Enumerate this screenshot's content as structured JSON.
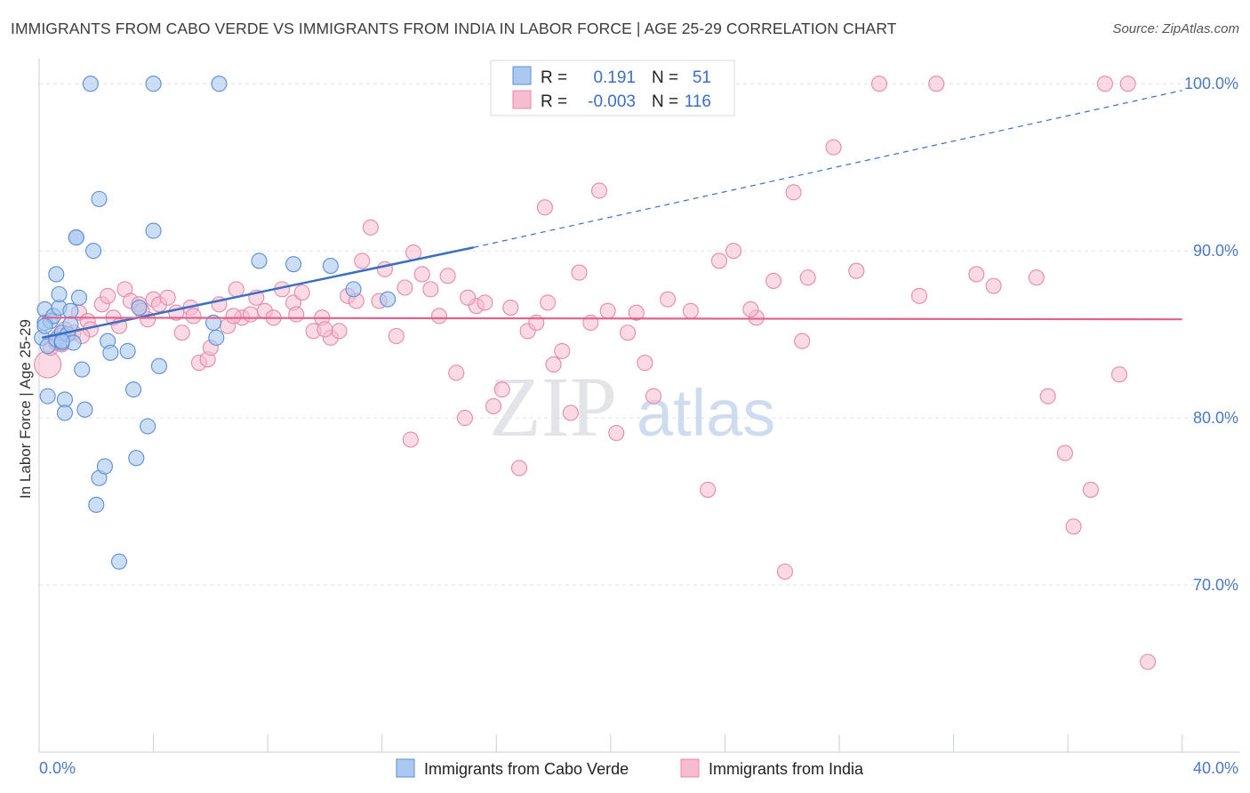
{
  "title": "IMMIGRANTS FROM CABO VERDE VS IMMIGRANTS FROM INDIA IN LABOR FORCE | AGE 25-29 CORRELATION CHART",
  "source": "Source: ZipAtlas.com",
  "colors": {
    "blue_fill": "#aac8f0",
    "blue_stroke": "#5b8fd6",
    "blue_line": "#3a6fc4",
    "pink_fill": "#f7bcd0",
    "pink_stroke": "#e58aa9",
    "pink_line": "#e0628c",
    "grid": "#dde3ea",
    "tick": "#4a79c4"
  },
  "watermark": {
    "zip": "ZIP",
    "atlas": "atlas"
  },
  "legend": {
    "rows": [
      {
        "r_label": "R =",
        "r_value": "0.191",
        "n_label": "N =",
        "n_value": "51"
      },
      {
        "r_label": "R =",
        "r_value": "-0.003",
        "n_label": "N =",
        "n_value": "116"
      }
    ]
  },
  "chart_data": {
    "type": "scatter",
    "title": "IMMIGRANTS FROM CABO VERDE VS IMMIGRANTS FROM INDIA IN LABOR FORCE | AGE 25-29 CORRELATION CHART",
    "xlabel": "",
    "ylabel": "In Labor Force | Age 25-29",
    "xlim": [
      0,
      42
    ],
    "ylim": [
      60,
      101.5
    ],
    "x_tick_labels": [
      {
        "value": 0,
        "label": "0.0%"
      },
      {
        "value": 40,
        "label": "40.0%"
      }
    ],
    "y_tick_labels": [
      {
        "value": 100,
        "label": "100.0%"
      },
      {
        "value": 90,
        "label": "90.0%"
      },
      {
        "value": 80,
        "label": "80.0%"
      },
      {
        "value": 70,
        "label": "70.0%"
      }
    ],
    "x_minor_ticks": [
      0,
      4,
      8,
      12,
      16,
      20,
      24,
      28,
      32,
      36,
      40
    ],
    "grid_y": [
      100,
      90,
      80,
      70
    ],
    "series": [
      {
        "name": "Immigrants from Cabo Verde",
        "trend": {
          "x": [
            0.1,
            15.2
          ],
          "y": [
            84.8,
            90.2
          ],
          "dashed_to": [
            40.0,
            99.6
          ]
        },
        "points": [
          [
            0.1,
            84.8
          ],
          [
            0.2,
            86.5
          ],
          [
            0.2,
            85.7
          ],
          [
            0.3,
            84.3
          ],
          [
            0.3,
            81.3
          ],
          [
            0.4,
            85.8
          ],
          [
            0.5,
            86.1
          ],
          [
            0.6,
            88.6
          ],
          [
            0.6,
            84.7
          ],
          [
            0.7,
            86.6
          ],
          [
            0.7,
            87.4
          ],
          [
            0.8,
            85.1
          ],
          [
            0.8,
            84.5
          ],
          [
            0.9,
            81.1
          ],
          [
            0.9,
            80.3
          ],
          [
            1.0,
            85.0
          ],
          [
            1.1,
            86.4
          ],
          [
            1.1,
            85.6
          ],
          [
            1.2,
            84.5
          ],
          [
            1.3,
            90.8
          ],
          [
            1.3,
            90.8
          ],
          [
            1.4,
            87.2
          ],
          [
            1.5,
            82.9
          ],
          [
            1.6,
            80.5
          ],
          [
            1.9,
            90.0
          ],
          [
            2.1,
            93.1
          ],
          [
            2.1,
            76.4
          ],
          [
            2.3,
            77.1
          ],
          [
            2.0,
            74.8
          ],
          [
            2.4,
            84.6
          ],
          [
            2.5,
            83.9
          ],
          [
            2.8,
            71.4
          ],
          [
            3.1,
            84.0
          ],
          [
            3.3,
            81.7
          ],
          [
            3.4,
            77.6
          ],
          [
            3.5,
            86.6
          ],
          [
            3.8,
            79.5
          ],
          [
            4.0,
            91.2
          ],
          [
            4.2,
            83.1
          ],
          [
            6.1,
            85.7
          ],
          [
            6.2,
            84.8
          ],
          [
            7.7,
            89.4
          ],
          [
            8.9,
            89.2
          ],
          [
            10.2,
            89.1
          ],
          [
            11.0,
            87.7
          ],
          [
            12.2,
            87.1
          ],
          [
            1.8,
            100.0
          ],
          [
            4.0,
            100.0
          ],
          [
            6.3,
            100.0
          ],
          [
            0.2,
            85.5
          ],
          [
            0.8,
            84.6
          ]
        ]
      },
      {
        "name": "Immigrants from India",
        "trend": {
          "x": [
            0.1,
            40.0
          ],
          "y": [
            86.0,
            85.9
          ]
        },
        "points": [
          [
            0.3,
            83.2
          ],
          [
            0.4,
            84.2
          ],
          [
            0.6,
            84.5
          ],
          [
            0.7,
            84.9
          ],
          [
            0.8,
            84.4
          ],
          [
            1.0,
            85.0
          ],
          [
            1.2,
            85.1
          ],
          [
            1.4,
            86.3
          ],
          [
            1.7,
            85.8
          ],
          [
            1.8,
            85.3
          ],
          [
            2.2,
            86.8
          ],
          [
            2.4,
            87.3
          ],
          [
            2.6,
            86.0
          ],
          [
            2.8,
            85.5
          ],
          [
            3.0,
            87.7
          ],
          [
            3.2,
            87.0
          ],
          [
            3.5,
            86.8
          ],
          [
            3.8,
            85.9
          ],
          [
            4.0,
            87.1
          ],
          [
            4.2,
            86.8
          ],
          [
            4.5,
            87.2
          ],
          [
            4.8,
            86.3
          ],
          [
            5.0,
            85.1
          ],
          [
            5.3,
            86.6
          ],
          [
            5.6,
            83.3
          ],
          [
            5.9,
            83.5
          ],
          [
            6.0,
            84.2
          ],
          [
            6.3,
            86.8
          ],
          [
            6.6,
            85.5
          ],
          [
            6.9,
            87.7
          ],
          [
            7.1,
            86.0
          ],
          [
            7.4,
            86.2
          ],
          [
            7.6,
            87.2
          ],
          [
            7.9,
            86.4
          ],
          [
            8.2,
            86.0
          ],
          [
            8.5,
            87.7
          ],
          [
            8.9,
            86.9
          ],
          [
            9.2,
            87.5
          ],
          [
            9.6,
            85.2
          ],
          [
            9.9,
            86.0
          ],
          [
            10.2,
            84.8
          ],
          [
            10.5,
            85.2
          ],
          [
            10.8,
            87.3
          ],
          [
            11.1,
            87.0
          ],
          [
            11.3,
            89.4
          ],
          [
            11.6,
            91.4
          ],
          [
            11.9,
            87.0
          ],
          [
            12.1,
            88.9
          ],
          [
            12.5,
            84.9
          ],
          [
            12.8,
            87.8
          ],
          [
            13.1,
            89.9
          ],
          [
            13.4,
            88.6
          ],
          [
            13.7,
            87.7
          ],
          [
            14.0,
            86.1
          ],
          [
            14.3,
            88.5
          ],
          [
            14.6,
            82.7
          ],
          [
            14.9,
            80.0
          ],
          [
            15.3,
            86.7
          ],
          [
            15.6,
            86.9
          ],
          [
            15.9,
            80.7
          ],
          [
            16.2,
            81.7
          ],
          [
            16.5,
            86.6
          ],
          [
            16.8,
            77.0
          ],
          [
            17.1,
            85.2
          ],
          [
            17.4,
            85.7
          ],
          [
            17.7,
            92.6
          ],
          [
            18.0,
            83.2
          ],
          [
            18.3,
            84.0
          ],
          [
            18.6,
            80.3
          ],
          [
            18.9,
            88.7
          ],
          [
            19.3,
            85.7
          ],
          [
            19.6,
            93.6
          ],
          [
            19.9,
            86.4
          ],
          [
            20.2,
            79.1
          ],
          [
            20.6,
            85.1
          ],
          [
            21.2,
            83.3
          ],
          [
            21.5,
            81.3
          ],
          [
            22.0,
            87.1
          ],
          [
            22.8,
            86.4
          ],
          [
            23.4,
            75.7
          ],
          [
            23.8,
            89.4
          ],
          [
            24.3,
            90.0
          ],
          [
            25.1,
            86.0
          ],
          [
            25.7,
            88.2
          ],
          [
            26.1,
            70.8
          ],
          [
            26.4,
            93.5
          ],
          [
            26.7,
            84.6
          ],
          [
            26.9,
            88.4
          ],
          [
            27.8,
            96.2
          ],
          [
            28.6,
            88.8
          ],
          [
            29.4,
            100.0
          ],
          [
            30.8,
            87.3
          ],
          [
            31.4,
            100.0
          ],
          [
            32.8,
            88.6
          ],
          [
            33.4,
            87.9
          ],
          [
            34.9,
            88.4
          ],
          [
            35.3,
            81.3
          ],
          [
            35.9,
            77.9
          ],
          [
            36.2,
            73.5
          ],
          [
            36.8,
            75.7
          ],
          [
            37.3,
            100.0
          ],
          [
            37.8,
            82.6
          ],
          [
            38.1,
            100.0
          ],
          [
            38.8,
            65.4
          ],
          [
            24.9,
            86.5
          ],
          [
            13.0,
            78.7
          ],
          [
            20.9,
            86.3
          ],
          [
            10.0,
            85.3
          ],
          [
            1.5,
            84.9
          ],
          [
            3.6,
            86.4
          ],
          [
            5.4,
            86.1
          ],
          [
            6.8,
            86.1
          ],
          [
            9.0,
            86.2
          ],
          [
            15.0,
            87.2
          ],
          [
            17.8,
            86.9
          ],
          [
            0.9,
            85.3
          ]
        ]
      }
    ]
  }
}
